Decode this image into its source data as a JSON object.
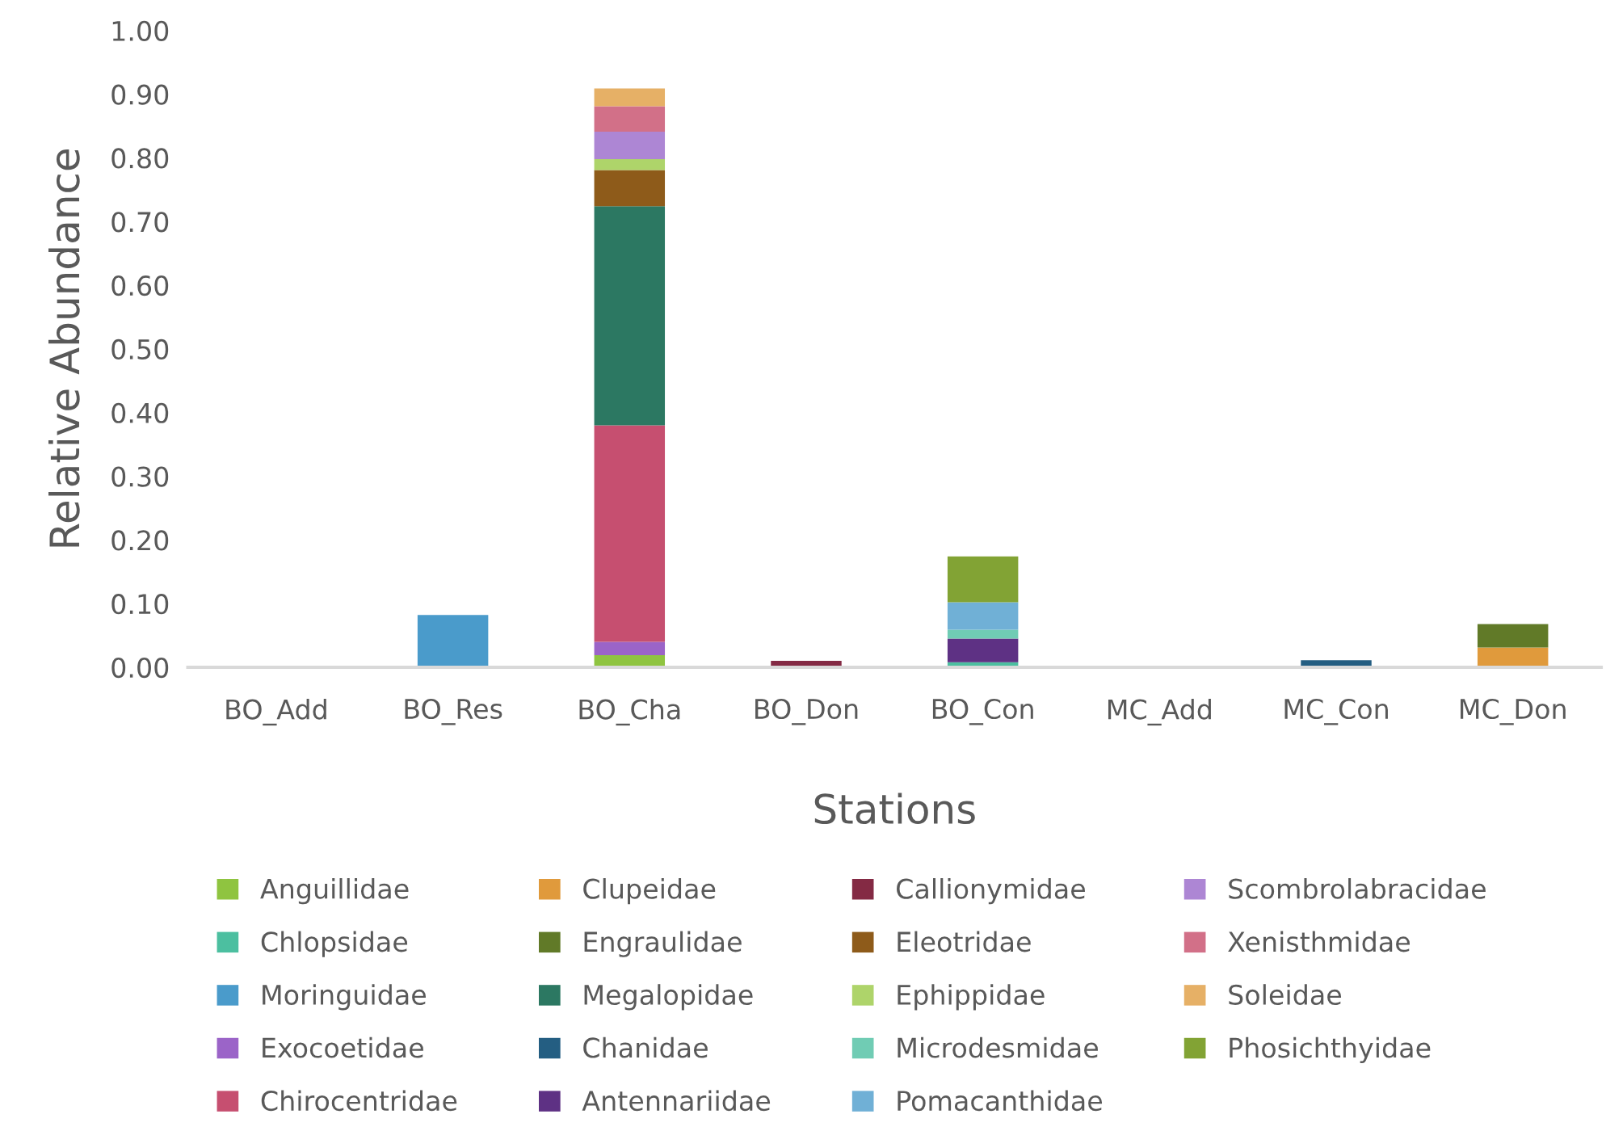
{
  "chart_data": {
    "type": "bar",
    "stacked": true,
    "xlabel": "Stations",
    "ylabel": "Relative Abundance",
    "categories": [
      "BO_Add",
      "BO_Res",
      "BO_Cha",
      "BO_Don",
      "BO_Con",
      "MC_Add",
      "MC_Con",
      "MC_Don"
    ],
    "ylim": [
      0,
      1
    ],
    "yticks": [
      {
        "value": 0,
        "label": "0.00"
      },
      {
        "value": 0.1,
        "label": "0.10"
      },
      {
        "value": 0.2,
        "label": "0.20"
      },
      {
        "value": 0.3,
        "label": "0.30"
      },
      {
        "value": 0.4,
        "label": "0.40"
      },
      {
        "value": 0.5,
        "label": "0.50"
      },
      {
        "value": 0.6,
        "label": "0.60"
      },
      {
        "value": 0.7,
        "label": "0.70"
      },
      {
        "value": 0.8,
        "label": "0.80"
      },
      {
        "value": 0.9,
        "label": "0.90"
      },
      {
        "value": 1.0,
        "label": "1.00"
      }
    ],
    "grid": false,
    "legend": "bottom",
    "series": [
      {
        "name": "Anguillidae",
        "color": "#8fc440",
        "values": [
          0,
          0,
          0.019,
          0,
          0,
          0,
          0,
          0
        ]
      },
      {
        "name": "Chlopsidae",
        "color": "#4cbfa0",
        "values": [
          0,
          0,
          0,
          0,
          0.008,
          0,
          0,
          0
        ]
      },
      {
        "name": "Moringuidae",
        "color": "#4a9bcb",
        "values": [
          0,
          0.082,
          0,
          0,
          0,
          0,
          0,
          0
        ]
      },
      {
        "name": "Exocoetidae",
        "color": "#9b64c8",
        "values": [
          0,
          0,
          0.021,
          0,
          0,
          0,
          0,
          0
        ]
      },
      {
        "name": "Chirocentridae",
        "color": "#c64f70",
        "values": [
          0,
          0,
          0.34,
          0,
          0,
          0,
          0,
          0
        ]
      },
      {
        "name": "Clupeidae",
        "color": "#e09a3c",
        "values": [
          0,
          0,
          0,
          0,
          0,
          0,
          0,
          0.031
        ]
      },
      {
        "name": "Engraulidae",
        "color": "#617a28",
        "values": [
          0,
          0,
          0,
          0,
          0,
          0,
          0,
          0.037
        ]
      },
      {
        "name": "Megalopidae",
        "color": "#2c7862",
        "values": [
          0,
          0,
          0.344,
          0,
          0,
          0,
          0,
          0
        ]
      },
      {
        "name": "Chanidae",
        "color": "#245e82",
        "values": [
          0,
          0,
          0,
          0,
          0,
          0,
          0.011,
          0
        ]
      },
      {
        "name": "Antennariidae",
        "color": "#5e3184",
        "values": [
          0,
          0,
          0,
          0,
          0.037,
          0,
          0,
          0
        ]
      },
      {
        "name": "Callionymidae",
        "color": "#842a44",
        "values": [
          0,
          0,
          0,
          0.01,
          0,
          0,
          0,
          0
        ]
      },
      {
        "name": "Eleotridae",
        "color": "#8e5b1a",
        "values": [
          0,
          0,
          0.057,
          0,
          0,
          0,
          0,
          0
        ]
      },
      {
        "name": "Ephippidae",
        "color": "#aed46a",
        "values": [
          0,
          0,
          0.017,
          0,
          0,
          0,
          0,
          0
        ]
      },
      {
        "name": "Microdesmidae",
        "color": "#70ccb4",
        "values": [
          0,
          0,
          0,
          0,
          0.014,
          0,
          0,
          0
        ]
      },
      {
        "name": "Pomacanthidae",
        "color": "#70b0d6",
        "values": [
          0,
          0,
          0,
          0,
          0.043,
          0,
          0,
          0
        ]
      },
      {
        "name": "Scombrolabracidae",
        "color": "#ad86d4",
        "values": [
          0,
          0,
          0.043,
          0,
          0,
          0,
          0,
          0
        ]
      },
      {
        "name": "Xenisthmidae",
        "color": "#d27088",
        "values": [
          0,
          0,
          0.04,
          0,
          0,
          0,
          0,
          0
        ]
      },
      {
        "name": "Soleidae",
        "color": "#e6b066",
        "values": [
          0,
          0,
          0.028,
          0,
          0,
          0,
          0,
          0
        ]
      },
      {
        "name": "Phosichthyidae",
        "color": "#82a334",
        "values": [
          0,
          0,
          0,
          0,
          0.072,
          0,
          0,
          0
        ]
      }
    ]
  }
}
